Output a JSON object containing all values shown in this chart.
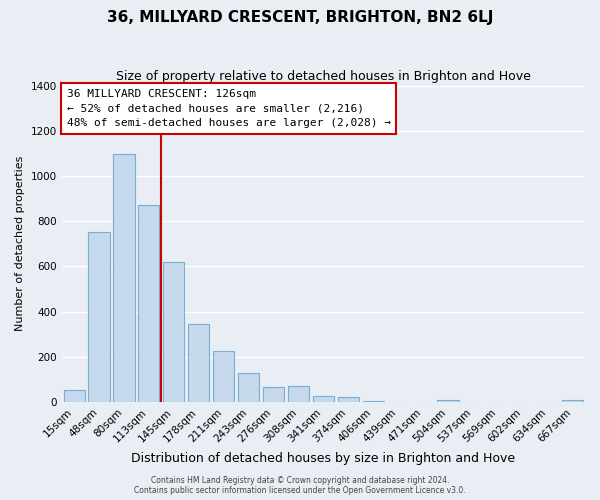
{
  "title": "36, MILLYARD CRESCENT, BRIGHTON, BN2 6LJ",
  "subtitle": "Size of property relative to detached houses in Brighton and Hove",
  "xlabel": "Distribution of detached houses by size in Brighton and Hove",
  "ylabel": "Number of detached properties",
  "categories": [
    "15sqm",
    "48sqm",
    "80sqm",
    "113sqm",
    "145sqm",
    "178sqm",
    "211sqm",
    "243sqm",
    "276sqm",
    "308sqm",
    "341sqm",
    "374sqm",
    "406sqm",
    "439sqm",
    "471sqm",
    "504sqm",
    "537sqm",
    "569sqm",
    "602sqm",
    "634sqm",
    "667sqm"
  ],
  "values": [
    55,
    750,
    1095,
    870,
    620,
    345,
    225,
    130,
    65,
    70,
    25,
    20,
    5,
    0,
    0,
    10,
    0,
    0,
    0,
    0,
    10
  ],
  "bar_color": "#c5d8ec",
  "bar_edge_color": "#7aafd4",
  "vline_color": "#cc0000",
  "vline_pos": 3.5,
  "ylim": [
    0,
    1400
  ],
  "yticks": [
    0,
    200,
    400,
    600,
    800,
    1000,
    1200,
    1400
  ],
  "annotation_title": "36 MILLYARD CRESCENT: 126sqm",
  "annotation_line1": "← 52% of detached houses are smaller (2,216)",
  "annotation_line2": "48% of semi-detached houses are larger (2,028) →",
  "annotation_box_color": "#ffffff",
  "annotation_box_edge": "#cc0000",
  "footer_line1": "Contains HM Land Registry data © Crown copyright and database right 2024.",
  "footer_line2": "Contains public sector information licensed under the Open Government Licence v3.0.",
  "background_color": "#e8eef4",
  "grid_color": "#ffffff",
  "title_fontsize": 11,
  "subtitle_fontsize": 9,
  "xlabel_fontsize": 9,
  "ylabel_fontsize": 8,
  "tick_fontsize": 7.5,
  "footer_fontsize": 5.5
}
